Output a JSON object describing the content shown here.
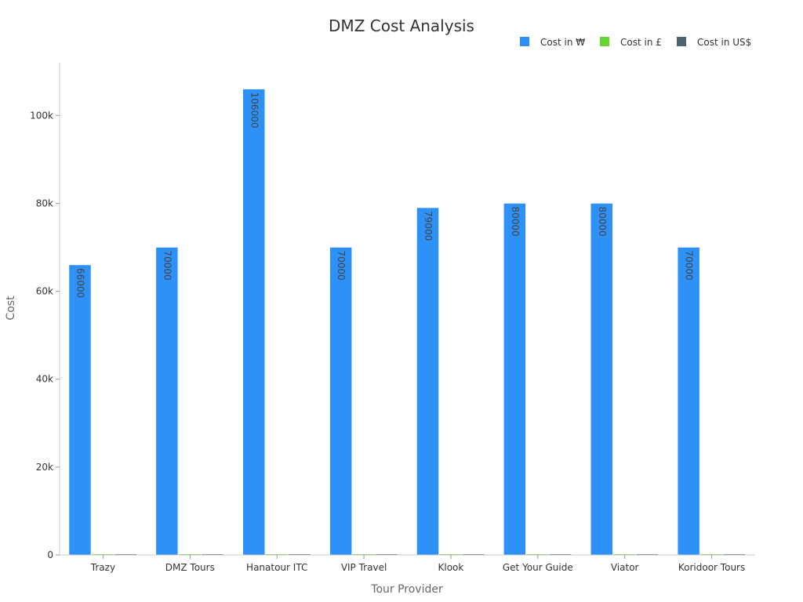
{
  "chart_data": {
    "type": "bar",
    "title": "DMZ Cost Analysis",
    "xlabel": "Tour Provider",
    "ylabel": "Cost",
    "categories": [
      "Trazy",
      "DMZ Tours",
      "Hanatour ITC",
      "VIP Travel",
      "Klook",
      "Get Your Guide",
      "Viator",
      "Koridoor Tours"
    ],
    "series": [
      {
        "name": "Cost in ₩",
        "color": "#2e91f7",
        "values": [
          66000,
          70000,
          106000,
          70000,
          79000,
          80000,
          80000,
          70000
        ]
      },
      {
        "name": "Cost in £",
        "color": "#66d52f",
        "values": [
          0,
          0,
          0,
          0,
          0,
          0,
          0,
          0
        ]
      },
      {
        "name": "Cost in US$",
        "color": "#4e6470",
        "values": [
          0,
          0,
          0,
          0,
          0,
          0,
          0,
          0
        ]
      }
    ],
    "ylim": [
      0,
      112000
    ],
    "yticks": [
      0,
      20000,
      40000,
      60000,
      80000,
      100000
    ],
    "ytick_labels": [
      "0",
      "20k",
      "40k",
      "60k",
      "80k",
      "100k"
    ],
    "data_labels": [
      "66000",
      "70000",
      "106000",
      "70000",
      "79000",
      "80000",
      "80000",
      "70000"
    ],
    "legend_position": "top-right",
    "grid": false
  }
}
